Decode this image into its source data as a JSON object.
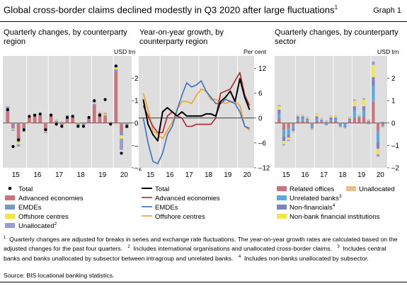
{
  "header": {
    "title": "Global cross-border claims declined modestly in Q3 2020 after large fluctuations",
    "title_note": "1",
    "graph_label": "Graph 1"
  },
  "colors": {
    "panel_bg": "#dedede",
    "advanced": "#c9747f",
    "emdes": "#7a97c9",
    "offshore": "#f6e24a",
    "unallocated": "#9a9ad6",
    "related": "#c9747f",
    "unrelated_banks": "#5aa9e0",
    "non_financials": "#7f82c7",
    "nbfi": "#f6e24a",
    "unallocated_sector": "#e5c08e",
    "total_line": "#000000",
    "adv_line": "#b0232b",
    "emde_line": "#3a6fc4",
    "off_line": "#f2a11b"
  },
  "footnotes": {
    "n1_mark": "1",
    "n1": "Quarterly changes are adjusted for breaks in series and exchange rate fluctuations. The year-on-year growth rates are calculated based on the adjusted changes for the past four quarters.",
    "n2_mark": "2",
    "n2": "Includes international organisations and unallocated cross-border claims.",
    "n3_mark": "3",
    "n3": "Includes central banks and banks unallocated by subsector between intragroup and unrelated banks.",
    "n4_mark": "4",
    "n4": "Includes non-banks unallocated by subsector.",
    "source": "Source: BIS locational banking statistics."
  },
  "chart_data": [
    {
      "id": "panel1",
      "type": "bar",
      "title": "Quarterly changes, by counterparty region",
      "unit": "USD trn",
      "x_tick_labels": [
        "15",
        "16",
        "17",
        "18",
        "19",
        "20"
      ],
      "categories": [
        "2015Q1",
        "2015Q2",
        "2015Q3",
        "2015Q4",
        "2016Q1",
        "2016Q2",
        "2016Q3",
        "2016Q4",
        "2017Q1",
        "2017Q2",
        "2017Q3",
        "2017Q4",
        "2018Q1",
        "2018Q2",
        "2018Q3",
        "2018Q4",
        "2019Q1",
        "2019Q2",
        "2019Q3",
        "2019Q4",
        "2020Q1",
        "2020Q2",
        "2020Q3"
      ],
      "ylim": [
        -2,
        3
      ],
      "yticks": [
        -2,
        -1,
        0,
        1,
        2
      ],
      "series": [
        {
          "name": "Advanced economies",
          "stack": true,
          "values": [
            0.65,
            -0.15,
            -0.75,
            -0.2,
            0.25,
            0.35,
            0.3,
            -0.3,
            0.35,
            0.05,
            -0.1,
            0.15,
            0.25,
            -0.05,
            -0.05,
            0.2,
            0.8,
            0.4,
            0.3,
            0,
            2.3,
            -0.35,
            -0.05
          ]
        },
        {
          "name": "EMDEs",
          "stack": true,
          "values": [
            0.05,
            -0.1,
            -0.1,
            -0.05,
            0.02,
            0.05,
            0.05,
            -0.05,
            0.05,
            0.05,
            0.03,
            0.1,
            0.05,
            -0.05,
            -0.05,
            0.02,
            0.05,
            0.05,
            0.05,
            0.02,
            0.1,
            -0.2,
            -0.05
          ]
        },
        {
          "name": "Offshore centres",
          "stack": true,
          "values": [
            0,
            -0.05,
            -0.1,
            -0.1,
            -0.05,
            0,
            0.02,
            -0.05,
            0.02,
            0.02,
            0.02,
            0.05,
            0.05,
            0.02,
            -0.02,
            0.02,
            0.05,
            0.02,
            0.05,
            0.02,
            0.1,
            -0.15,
            -0.03
          ]
        },
        {
          "name": "Unallocated",
          "note": "2",
          "stack": true,
          "values": [
            0.05,
            -0.05,
            -0.1,
            -0.05,
            0.02,
            0.02,
            0.02,
            -0.05,
            0.02,
            0.02,
            0.02,
            0.05,
            0.02,
            -0.02,
            -0.02,
            0.02,
            0.05,
            0.02,
            0.05,
            0.02,
            0.1,
            -0.5,
            -0.1
          ]
        },
        {
          "name": "Total",
          "marker": "dot",
          "values": [
            0.6,
            -1.05,
            -0.75,
            -0.3,
            0.3,
            0.35,
            0.4,
            -0.3,
            0.35,
            -0.05,
            -0.15,
            0.25,
            0.3,
            -0.15,
            -0.15,
            0.25,
            1.0,
            0.35,
            1.05,
            -0.05,
            2.55,
            -1.35,
            -0.15
          ]
        }
      ]
    },
    {
      "id": "panel2",
      "type": "line",
      "title": "Year-on-year growth, by counterparty region",
      "unit": "Per cent",
      "x_tick_labels": [
        "15",
        "16",
        "17",
        "18",
        "19",
        "20"
      ],
      "x_start": "2015Q1",
      "ylim": [
        -12,
        15
      ],
      "yticks": [
        -12,
        -6,
        0,
        6,
        12
      ],
      "series": [
        {
          "name": "Total",
          "values": [
            4.5,
            -1.5,
            -4,
            -5.5,
            1.5,
            2.5,
            1.5,
            0.5,
            1.5,
            0.5,
            0.5,
            0.5,
            0.5,
            1,
            1,
            0.5,
            4,
            5,
            6.5,
            4,
            9.5,
            5,
            2
          ]
        },
        {
          "name": "Advanced economies",
          "values": [
            3,
            0.5,
            -2,
            -3.5,
            -3.5,
            0.5,
            1.5,
            0.5,
            0,
            -2,
            -2,
            -1.5,
            -1.5,
            -1.5,
            -1.5,
            0,
            6,
            6.5,
            7,
            9,
            11,
            5.5,
            3
          ]
        },
        {
          "name": "EMDEs",
          "values": [
            0,
            -6,
            -10.5,
            -11,
            -8.5,
            -4,
            -2,
            2,
            5.5,
            8.5,
            7.5,
            8,
            9,
            6.5,
            5,
            3.5,
            3.5,
            4.5,
            4,
            3.5,
            1.5,
            -2,
            -2.5
          ]
        },
        {
          "name": "Offshore centres",
          "values": [
            6,
            2,
            -3,
            -4,
            -5,
            -3,
            -1,
            2,
            4,
            4,
            3.5,
            5.5,
            7,
            6.5,
            4.5,
            4.5,
            4,
            3.5,
            4,
            4,
            3,
            -2,
            -3
          ]
        }
      ]
    },
    {
      "id": "panel3",
      "type": "bar",
      "title": "Quarterly changes, by counterparty sector",
      "unit": "USD trn",
      "x_tick_labels": [
        "15",
        "16",
        "17",
        "18",
        "19",
        "20"
      ],
      "categories": [
        "2015Q1",
        "2015Q2",
        "2015Q3",
        "2015Q4",
        "2016Q1",
        "2016Q2",
        "2016Q3",
        "2016Q4",
        "2017Q1",
        "2017Q2",
        "2017Q3",
        "2017Q4",
        "2018Q1",
        "2018Q2",
        "2018Q3",
        "2018Q4",
        "2019Q1",
        "2019Q2",
        "2019Q3",
        "2019Q4",
        "2020Q1",
        "2020Q2",
        "2020Q3"
      ],
      "ylim": [
        -2,
        3
      ],
      "yticks": [
        -2,
        -1,
        0,
        1,
        2
      ],
      "series": [
        {
          "name": "Related offices",
          "values": [
            0.2,
            -0.3,
            -0.25,
            -0.1,
            0.1,
            0.1,
            0.1,
            -0.1,
            0.1,
            0.05,
            -0.05,
            0.1,
            0.1,
            -0.05,
            -0.05,
            0.1,
            0.25,
            0.2,
            0.3,
            0.05,
            0.95,
            -0.35,
            -0.1
          ]
        },
        {
          "name": "Unrelated banks",
          "note": "3",
          "values": [
            0.2,
            -0.3,
            -0.25,
            -0.15,
            0.1,
            0.1,
            0.05,
            -0.1,
            0.1,
            0.05,
            -0.05,
            0.05,
            0.1,
            -0.05,
            -0.1,
            0.05,
            0.3,
            0.05,
            0.25,
            -0.05,
            0.7,
            -0.5,
            -0.05
          ]
        },
        {
          "name": "Non-financials",
          "note": "4",
          "values": [
            0.2,
            -0.2,
            -0.15,
            -0.1,
            0.1,
            0.1,
            0.05,
            -0.05,
            0.1,
            0.05,
            0.05,
            0.1,
            0.05,
            -0.05,
            -0.05,
            0.05,
            0.2,
            0.05,
            0.2,
            0.05,
            0.4,
            -0.3,
            0.05
          ]
        },
        {
          "name": "Non-bank financial institutions",
          "values": [
            0.15,
            -0.15,
            -0.1,
            -0.05,
            0.05,
            0.05,
            0.05,
            -0.05,
            0.1,
            0.05,
            0.05,
            0.05,
            0.05,
            -0.02,
            -0.02,
            0.05,
            0.25,
            0.05,
            0.3,
            0.02,
            0.55,
            -0.25,
            -0.03
          ]
        },
        {
          "name": "Unallocated",
          "values": [
            0.05,
            -0.05,
            -0.05,
            -0.02,
            0.02,
            0.02,
            0.02,
            -0.02,
            0.02,
            0.02,
            0.02,
            0.02,
            0.02,
            -0.02,
            -0.02,
            0.02,
            0.05,
            0.02,
            0.05,
            0.02,
            0.15,
            -0.1,
            -0.02
          ]
        }
      ]
    }
  ]
}
